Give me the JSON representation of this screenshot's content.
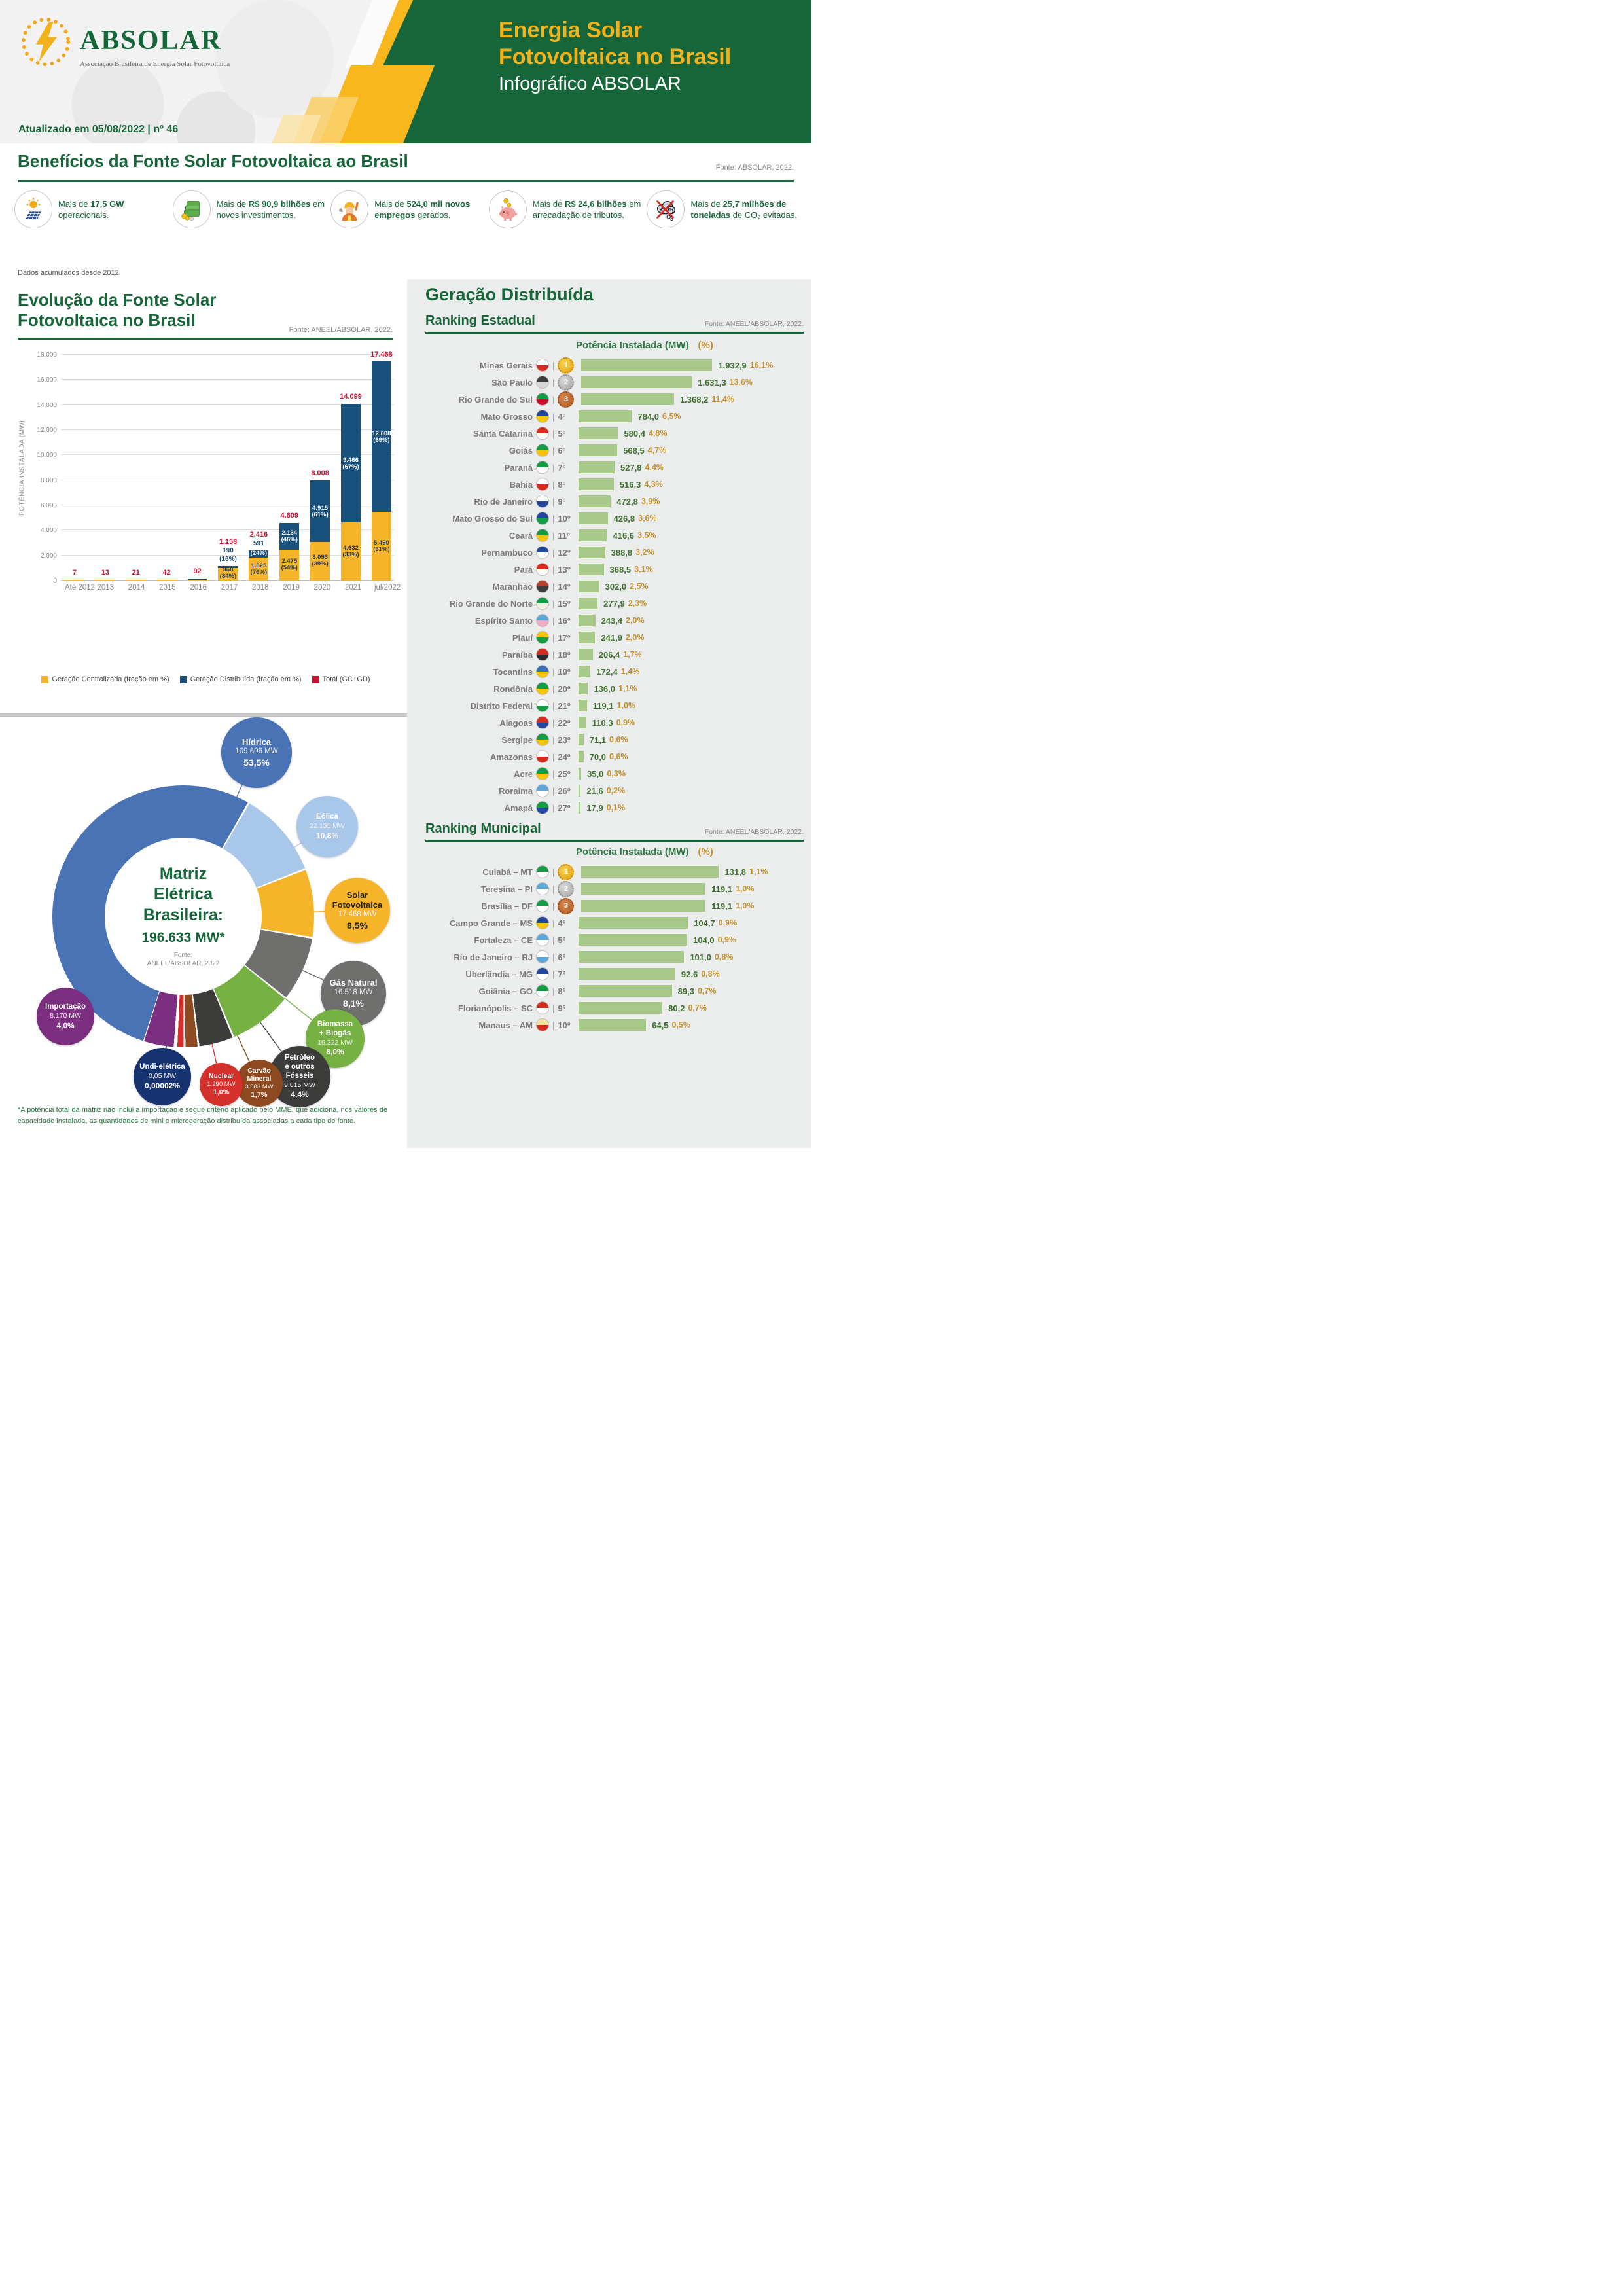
{
  "colors": {
    "brand_green": "#17663a",
    "brand_yellow": "#f2b21c",
    "total_red": "#c41230",
    "gc_yellow": "#f6b42a",
    "gd_blue": "#19517c",
    "ranking_bar_green": "#a9c98a",
    "value_green": "#3f7030",
    "pct_gold": "#c2912e"
  },
  "header": {
    "logo_text": "ABSOLAR",
    "logo_subtitle": "Associação Brasileira de Energia Solar Fotovoltaica",
    "updated": "Atualizado em 05/08/2022 | nº 46",
    "title_l1": "Energia Solar",
    "title_l2": "Fotovoltaica no Brasil",
    "title_l3": "Infográfico ABSOLAR"
  },
  "benefits": {
    "title": "Benefícios da Fonte Solar Fotovoltaica ao Brasil",
    "fonte": "Fonte: ABSOLAR, 2022.",
    "note": "Dados acumulados desde 2012.",
    "items": [
      {
        "icon": "solar-panel-icon",
        "pre": "Mais de",
        "bold": "17,5 GW",
        "post": "operacionais."
      },
      {
        "icon": "money-icon",
        "pre": "Mais de",
        "bold": "R$ 90,9 bilhões",
        "post": "em novos investimentos."
      },
      {
        "icon": "worker-icon",
        "pre": "Mais de",
        "bold": "524,0 mil novos empregos",
        "post": "gerados."
      },
      {
        "icon": "piggy-bank-icon",
        "pre": "Mais de",
        "bold": "R$ 24,6 bilhões",
        "post": "em arrecadação de tributos."
      },
      {
        "icon": "co2-icon",
        "pre": "Mais de",
        "bold": "25,7 milhões de toneladas",
        "post": "de CO₂ evitadas."
      }
    ]
  },
  "evolution": {
    "title_l1": "Evolução da Fonte Solar",
    "title_l2": "Fotovoltaica no Brasil",
    "fonte": "Fonte: ANEEL/ABSOLAR, 2022.",
    "ylabel": "POTÊNCIA INSTALADA (MW)"
  },
  "distribuida": {
    "title": "Geração Distribuída",
    "estadual": {
      "title": "Ranking Estadual",
      "fonte": "Fonte: ANEEL/ABSOLAR, 2022.",
      "col_mw": "Potência Instalada (MW)",
      "col_pct": "(%)"
    },
    "municipal": {
      "title": "Ranking Municipal",
      "fonte": "Fonte: ANEEL/ABSOLAR, 2022.",
      "col_mw": "Potência Instalada (MW)",
      "col_pct": "(%)"
    }
  },
  "matriz": {
    "center": [
      "Matriz",
      "Elétrica",
      "Brasileira:"
    ],
    "total": "196.633 MW*",
    "fonte_l1": "Fonte:",
    "fonte_l2": "ANEEL/ABSOLAR, 2022",
    "footnote": "*A potência total da matriz não inclui a importação e segue critério aplicado pelo MME, que adiciona, nos valores de capacidade instalada, as quantidades de mini e microgeração distribuída associadas a cada tipo de fonte."
  },
  "chart_data": [
    {
      "id": "evolucao",
      "type": "bar",
      "stacked": true,
      "title": "Evolução da Fonte Solar Fotovoltaica no Brasil",
      "xlabel": "",
      "ylabel": "POTÊNCIA INSTALADA (MW)",
      "ylim": [
        0,
        18000
      ],
      "yticks": [
        "0",
        "2.000",
        "4.000",
        "6.000",
        "8.000",
        "10.000",
        "12.000",
        "14.000",
        "16.000",
        "18.000"
      ],
      "grid": true,
      "legend_position": "bottom",
      "categories": [
        "Até 2012",
        "2013",
        "2014",
        "2015",
        "2016",
        "2017",
        "2018",
        "2019",
        "2020",
        "2021",
        "jul/2022"
      ],
      "series": [
        {
          "name": "Geração Centralizada (fração em %)",
          "color": "#f6b42a",
          "values": [
            null,
            null,
            null,
            null,
            null,
            968,
            1825,
            2475,
            3093,
            4632,
            5460
          ],
          "labels": [
            "",
            "",
            "",
            "",
            "",
            "968",
            "1.825",
            "2.475",
            "3.093",
            "4.632",
            "5.460"
          ],
          "pcts": [
            "",
            "",
            "",
            "",
            "",
            "(84%)",
            "(76%)",
            "(54%)",
            "(39%)",
            "(33%)",
            "(31%)"
          ]
        },
        {
          "name": "Geração Distribuída (fração em %)",
          "color": "#19517c",
          "values": [
            null,
            null,
            null,
            null,
            null,
            190,
            591,
            2134,
            4915,
            9466,
            12008
          ],
          "labels": [
            "",
            "",
            "",
            "",
            "",
            "190",
            "591",
            "2.134",
            "4.915",
            "9.466",
            "12.008"
          ],
          "pcts": [
            "",
            "",
            "",
            "",
            "",
            "(16%)",
            "(24%)",
            "(46%)",
            "(61%)",
            "(67%)",
            "(69%)"
          ]
        },
        {
          "name": "Total (GC+GD)",
          "color": "#c41230",
          "values": [
            7,
            13,
            21,
            42,
            92,
            1158,
            2416,
            4609,
            8008,
            14099,
            17468
          ],
          "labels": [
            "7",
            "13",
            "21",
            "42",
            "92",
            "1.158",
            "2.416",
            "4.609",
            "8.008",
            "14.099",
            "17.468"
          ],
          "pcts": [
            "",
            "",
            "",
            "",
            "",
            "",
            "",
            "",
            "",
            "",
            ""
          ]
        }
      ]
    },
    {
      "id": "ranking_estadual",
      "type": "bar",
      "orientation": "horizontal",
      "title": "Ranking Estadual",
      "rows": [
        {
          "rank": 1,
          "name": "Minas Gerais",
          "value": 1932.9,
          "label": "1.932,9",
          "pct": "16,1%",
          "flag": [
            "#ffffff",
            "#d52b1e"
          ]
        },
        {
          "rank": 2,
          "name": "São Paulo",
          "value": 1631.3,
          "label": "1.631,3",
          "pct": "13,6%",
          "flag": [
            "#3d3d3d",
            "#d6d6d6"
          ]
        },
        {
          "rank": 3,
          "name": "Rio Grande do Sul",
          "value": 1368.2,
          "label": "1.368,2",
          "pct": "11,4%",
          "flag": [
            "#169b46",
            "#c8102e"
          ]
        },
        {
          "rank": 4,
          "name": "Mato Grosso",
          "value": 784.0,
          "label": "784,0",
          "pct": "6,5%",
          "flag": [
            "#23479c",
            "#f7c500"
          ]
        },
        {
          "rank": 5,
          "name": "Santa Catarina",
          "value": 580.4,
          "label": "580,4",
          "pct": "4,8%",
          "flag": [
            "#d52b1e",
            "#ffffff"
          ]
        },
        {
          "rank": 6,
          "name": "Goiás",
          "value": 568.5,
          "label": "568,5",
          "pct": "4,7%",
          "flag": [
            "#169b46",
            "#f7c500"
          ]
        },
        {
          "rank": 7,
          "name": "Paraná",
          "value": 527.8,
          "label": "527,8",
          "pct": "4,4%",
          "flag": [
            "#169b46",
            "#ffffff"
          ]
        },
        {
          "rank": 8,
          "name": "Bahia",
          "value": 516.3,
          "label": "516,3",
          "pct": "4,3%",
          "flag": [
            "#ffffff",
            "#d52b1e"
          ]
        },
        {
          "rank": 9,
          "name": "Rio de Janeiro",
          "value": 472.8,
          "label": "472,8",
          "pct": "3,9%",
          "flag": [
            "#ffffff",
            "#23479c"
          ]
        },
        {
          "rank": 10,
          "name": "Mato Grosso do Sul",
          "value": 426.8,
          "label": "426,8",
          "pct": "3,6%",
          "flag": [
            "#23479c",
            "#169b46"
          ]
        },
        {
          "rank": 11,
          "name": "Ceará",
          "value": 416.6,
          "label": "416,6",
          "pct": "3,5%",
          "flag": [
            "#169b46",
            "#f7c500"
          ]
        },
        {
          "rank": 12,
          "name": "Pernambuco",
          "value": 388.8,
          "label": "388,8",
          "pct": "3,2%",
          "flag": [
            "#23479c",
            "#ffffff"
          ]
        },
        {
          "rank": 13,
          "name": "Pará",
          "value": 368.5,
          "label": "368,5",
          "pct": "3,1%",
          "flag": [
            "#d52b1e",
            "#ffffff"
          ]
        },
        {
          "rank": 14,
          "name": "Maranhão",
          "value": 302.0,
          "label": "302,0",
          "pct": "2,5%",
          "flag": [
            "#b5412f",
            "#3d3d3d"
          ]
        },
        {
          "rank": 15,
          "name": "Rio Grande do Norte",
          "value": 277.9,
          "label": "277,9",
          "pct": "2,3%",
          "flag": [
            "#169b46",
            "#f3efe2"
          ]
        },
        {
          "rank": 16,
          "name": "Espírito Santo",
          "value": 243.4,
          "label": "243,4",
          "pct": "2,0%",
          "flag": [
            "#5aa7d8",
            "#f2a9c4"
          ]
        },
        {
          "rank": 17,
          "name": "Piauí",
          "value": 241.9,
          "label": "241,9",
          "pct": "2,0%",
          "flag": [
            "#f7c500",
            "#169b46"
          ]
        },
        {
          "rank": 18,
          "name": "Paraíba",
          "value": 206.4,
          "label": "206,4",
          "pct": "1,7%",
          "flag": [
            "#d52b1e",
            "#2b2b2b"
          ]
        },
        {
          "rank": 19,
          "name": "Tocantins",
          "value": 172.4,
          "label": "172,4",
          "pct": "1,4%",
          "flag": [
            "#3b6fb5",
            "#f7c500"
          ]
        },
        {
          "rank": 20,
          "name": "Rondônia",
          "value": 136.0,
          "label": "136,0",
          "pct": "1,1%",
          "flag": [
            "#169b46",
            "#f7c500"
          ]
        },
        {
          "rank": 21,
          "name": "Distrito Federal",
          "value": 119.1,
          "label": "119,1",
          "pct": "1,0%",
          "flag": [
            "#ffffff",
            "#169b46"
          ]
        },
        {
          "rank": 22,
          "name": "Alagoas",
          "value": 110.3,
          "label": "110,3",
          "pct": "0,9%",
          "flag": [
            "#d52b1e",
            "#23479c"
          ]
        },
        {
          "rank": 23,
          "name": "Sergipe",
          "value": 71.1,
          "label": "71,1",
          "pct": "0,6%",
          "flag": [
            "#169b46",
            "#f7c500"
          ]
        },
        {
          "rank": 24,
          "name": "Amazonas",
          "value": 70.0,
          "label": "70,0",
          "pct": "0,6%",
          "flag": [
            "#ffffff",
            "#d52b1e"
          ]
        },
        {
          "rank": 25,
          "name": "Acre",
          "value": 35.0,
          "label": "35,0",
          "pct": "0,3%",
          "flag": [
            "#169b46",
            "#f7c500"
          ]
        },
        {
          "rank": 26,
          "name": "Roraima",
          "value": 21.6,
          "label": "21,6",
          "pct": "0,2%",
          "flag": [
            "#5aa7d8",
            "#ffffff"
          ]
        },
        {
          "rank": 27,
          "name": "Amapá",
          "value": 17.9,
          "label": "17,9",
          "pct": "0,1%",
          "flag": [
            "#169b46",
            "#23479c"
          ]
        }
      ]
    },
    {
      "id": "ranking_municipal",
      "type": "bar",
      "orientation": "horizontal",
      "title": "Ranking Municipal",
      "rows": [
        {
          "rank": 1,
          "name": "Cuiabá – MT",
          "value": 131.8,
          "label": "131,8",
          "pct": "1,1%",
          "flag": [
            "#169b46",
            "#ffffff"
          ]
        },
        {
          "rank": 2,
          "name": "Teresina – PI",
          "value": 119.1,
          "label": "119,1",
          "pct": "1,0%",
          "flag": [
            "#5aa7d8",
            "#ffffff"
          ]
        },
        {
          "rank": 3,
          "name": "Brasília – DF",
          "value": 119.1,
          "label": "119,1",
          "pct": "1,0%",
          "flag": [
            "#169b46",
            "#ffffff"
          ]
        },
        {
          "rank": 4,
          "name": "Campo Grande – MS",
          "value": 104.7,
          "label": "104,7",
          "pct": "0,9%",
          "flag": [
            "#23479c",
            "#f7c500"
          ]
        },
        {
          "rank": 5,
          "name": "Fortaleza – CE",
          "value": 104.0,
          "label": "104,0",
          "pct": "0,9%",
          "flag": [
            "#5aa7d8",
            "#ffffff"
          ]
        },
        {
          "rank": 6,
          "name": "Rio de Janeiro – RJ",
          "value": 101.0,
          "label": "101,0",
          "pct": "0,8%",
          "flag": [
            "#ffffff",
            "#5aa7d8"
          ]
        },
        {
          "rank": 7,
          "name": "Uberlândia – MG",
          "value": 92.6,
          "label": "92,6",
          "pct": "0,8%",
          "flag": [
            "#23479c",
            "#ffffff"
          ]
        },
        {
          "rank": 8,
          "name": "Goiânia – GO",
          "value": 89.3,
          "label": "89,3",
          "pct": "0,7%",
          "flag": [
            "#169b46",
            "#ffffff"
          ]
        },
        {
          "rank": 9,
          "name": "Florianópolis – SC",
          "value": 80.2,
          "label": "80,2",
          "pct": "0,7%",
          "flag": [
            "#d52b1e",
            "#ffffff"
          ]
        },
        {
          "rank": 10,
          "name": "Manaus – AM",
          "value": 64.5,
          "label": "64,5",
          "pct": "0,5%",
          "flag": [
            "#f5e6a0",
            "#d52b1e"
          ]
        }
      ]
    },
    {
      "id": "matriz_eletrica",
      "type": "pie",
      "donut": true,
      "title": "Matriz Elétrica Brasileira: 196.633 MW*",
      "slices": [
        {
          "name_lines": [
            "Hídrica"
          ],
          "mw": "109.606 MW",
          "pct": "53,5%",
          "value": 53.5,
          "color": "#4a73b5",
          "dark": false
        },
        {
          "name_lines": [
            "Eólica"
          ],
          "mw": "22.131 MW",
          "pct": "10,8%",
          "value": 10.8,
          "color": "#a9c7e8",
          "dark": false
        },
        {
          "name_lines": [
            "Solar",
            "Fotovoltaica"
          ],
          "mw": "17.468 MW",
          "pct": "8,5%",
          "value": 8.5,
          "color": "#f6b42a",
          "dark": true
        },
        {
          "name_lines": [
            "Gás Natural"
          ],
          "mw": "16.518 MW",
          "pct": "8,1%",
          "value": 8.1,
          "color": "#6f6f6e",
          "dark": false
        },
        {
          "name_lines": [
            "Biomassa",
            "+ Biogás"
          ],
          "mw": "16.322 MW",
          "pct": "8,0%",
          "value": 8.0,
          "color": "#77b043",
          "dark": false
        },
        {
          "name_lines": [
            "Petróleo",
            "e outros",
            "Fósseis"
          ],
          "mw": "9.015 MW",
          "pct": "4,4%",
          "value": 4.4,
          "color": "#3c3c3b",
          "dark": false
        },
        {
          "name_lines": [
            "Carvão",
            "Mineral"
          ],
          "mw": "3.583 MW",
          "pct": "1,7%",
          "value": 1.7,
          "color": "#8d4a21",
          "dark": false
        },
        {
          "name_lines": [
            "Nuclear"
          ],
          "mw": "1.990 MW",
          "pct": "1,0%",
          "value": 1.0,
          "color": "#d3302c",
          "dark": false
        },
        {
          "name_lines": [
            "Undi-elétrica"
          ],
          "mw": "0,05 MW",
          "pct": "0,00002%",
          "value": 2e-05,
          "color": "#16336f",
          "dark": false
        },
        {
          "name_lines": [
            "Importação"
          ],
          "mw": "8.170 MW",
          "pct": "4,0%",
          "value": 4.0,
          "color": "#7c2e80",
          "dark": false
        }
      ]
    }
  ]
}
